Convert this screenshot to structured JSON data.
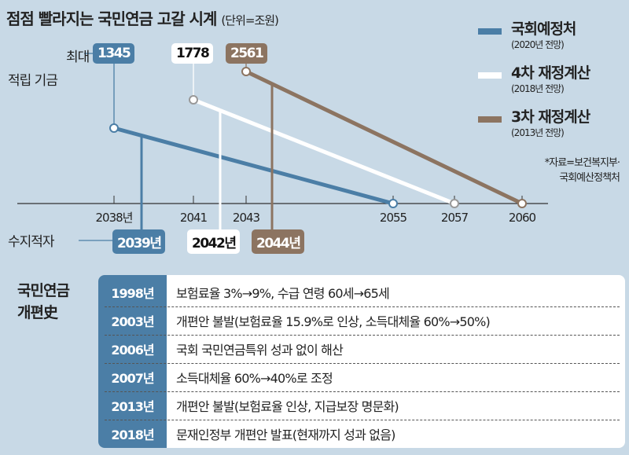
{
  "title": "점점 빨라지는 국민연금 고갈 시계",
  "unit": "(단위=조원)",
  "labels": {
    "max_fund": [
      "최대",
      "적립 기금"
    ],
    "deficit": "수지적자"
  },
  "legend": [
    {
      "name": "국회예정처",
      "sub": "(2020년 전망)",
      "color": "#4b7ea6"
    },
    {
      "name": "4차 재정계산",
      "sub": "(2018년 전망)",
      "color": "#ffffff"
    },
    {
      "name": "3차 재정계산",
      "sub": "(2013년 전망)",
      "color": "#8c7461"
    }
  ],
  "source": [
    "*자료=보건복지부·",
    "국회예산정책처"
  ],
  "chart_data": {
    "type": "line",
    "title": "점점 빨라지는 국민연금 고갈 시계 (단위=조원)",
    "x_ticks": [
      "2038년",
      "2041",
      "2043",
      "2055",
      "2057",
      "2060"
    ],
    "series": [
      {
        "name": "국회예정처 (2020년 전망)",
        "peak_year": 2038,
        "peak_value": 1345,
        "peak_label": "1345",
        "deficit_year": 2039,
        "deficit_label": "2039년",
        "depletion_year": 2055,
        "color": "#4b7ea6"
      },
      {
        "name": "4차 재정계산 (2018년 전망)",
        "peak_year": 2041,
        "peak_value": 1778,
        "peak_label": "1778",
        "deficit_year": 2042,
        "deficit_label": "2042년",
        "depletion_year": 2057,
        "color": "#ffffff"
      },
      {
        "name": "3차 재정계산 (2013년 전망)",
        "peak_year": 2043,
        "peak_value": 2561,
        "peak_label": "2561",
        "deficit_year": 2044,
        "deficit_label": "2044년",
        "depletion_year": 2060,
        "color": "#8c7461"
      }
    ]
  },
  "history": {
    "title": [
      "국민연금",
      "개편史"
    ],
    "rows": [
      {
        "year": "1998년",
        "desc": "보험료율 3%→9%, 수급 연령 60세→65세"
      },
      {
        "year": "2003년",
        "desc": "개편안 불발(보험료율 15.9%로 인상, 소득대체율 60%→50%)"
      },
      {
        "year": "2006년",
        "desc": "국회 국민연금특위 성과 없이 해산"
      },
      {
        "year": "2007년",
        "desc": "소득대체율 60%→40%로 조정"
      },
      {
        "year": "2013년",
        "desc": "개편안 불발(보험료율 인상, 지급보장 명문화)"
      },
      {
        "year": "2018년",
        "desc": "문재인정부 개편안 발표(현재까지 성과 없음)"
      }
    ]
  }
}
